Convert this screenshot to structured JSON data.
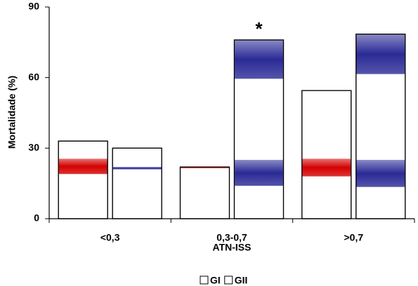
{
  "chart_data": {
    "type": "bar",
    "y_label": "Mortalidade (%)",
    "x_label": "ATN-ISS",
    "annotation": "*",
    "categories": [
      "<0,3",
      "0,3-0,7",
      ">0,7"
    ],
    "series": [
      {
        "name": "GI",
        "color": "#ffffff",
        "band_color": "#d40000",
        "values": [
          33,
          22,
          54.5
        ],
        "bands": [
          [
            [
              19,
              25.5
            ]
          ],
          [
            [
              21.5,
              22
            ]
          ],
          [
            [
              18,
              25.5
            ]
          ]
        ]
      },
      {
        "name": "GII",
        "color": "#ffffff",
        "band_color": "#2a2a96",
        "values": [
          30,
          76,
          78.5
        ],
        "bands": [
          [
            [
              21,
              22
            ]
          ],
          [
            [
              14,
              25
            ],
            [
              59.5,
              76
            ]
          ],
          [
            [
              13.5,
              25
            ],
            [
              61.5,
              78.5
            ]
          ]
        ]
      }
    ],
    "ylim": [
      0,
      90
    ],
    "yticks": [
      0,
      30,
      60,
      90
    ]
  }
}
